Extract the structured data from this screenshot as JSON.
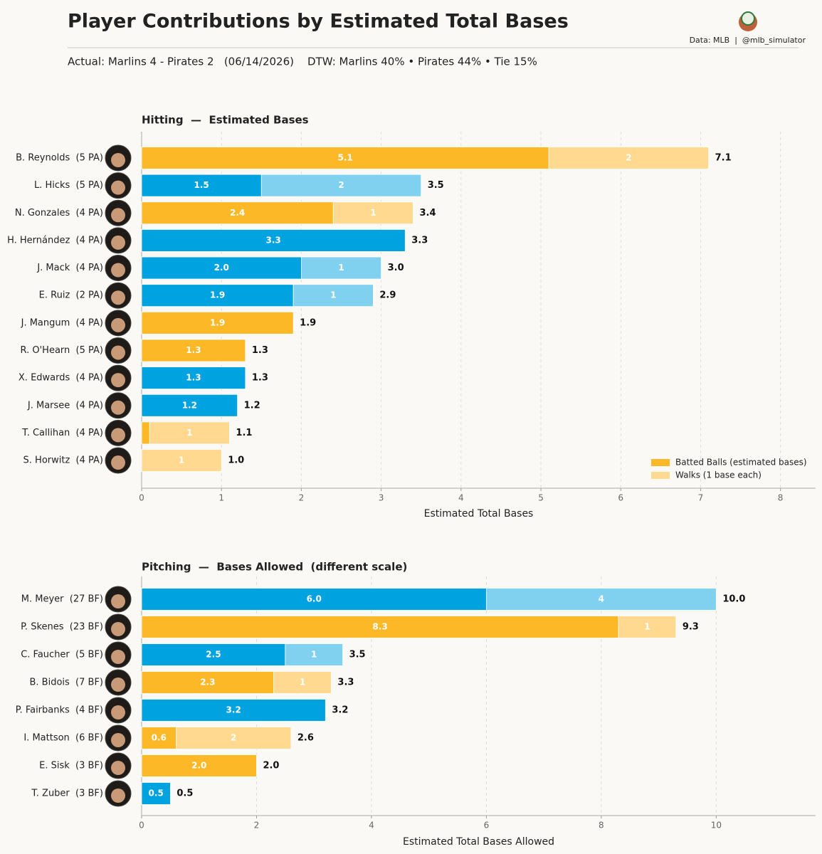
{
  "header": {
    "title": "Player Contributions by Estimated Total Bases",
    "source": "Data: MLB  |  @mlb_simulator",
    "subtitle": "Actual: Marlins 4 - Pirates 2   (06/14/2026)    DTW: Marlins 40% • Pirates 44% • Tie 15%"
  },
  "chart_data": [
    {
      "type": "stacked-bar-horizontal",
      "title": "Hitting  —  Estimated Bases",
      "x_label": "Estimated Total Bases",
      "categories": [
        "B. Reynolds  (5 PA)",
        "L. Hicks  (5 PA)",
        "N. Gonzales  (4 PA)",
        "H. Hernández  (4 PA)",
        "J. Mack  (4 PA)",
        "E. Ruiz  (2 PA)",
        "J. Mangum  (4 PA)",
        "R. O'Hearn  (5 PA)",
        "X. Edwards  (4 PA)",
        "J. Marsee  (4 PA)",
        "T. Callihan  (4 PA)",
        "S. Horwitz  (4 PA)"
      ],
      "series": [
        {
          "name": "Batted Balls (estimated bases)",
          "color": "#fdb827",
          "colors": [
            "#fdb827",
            "#00a3e0",
            "#fdb827",
            "#00a3e0",
            "#00a3e0",
            "#00a3e0",
            "#fdb827",
            "#fdb827",
            "#00a3e0",
            "#00a3e0",
            "#fdb827",
            "#fdb827"
          ],
          "values": [
            5.1,
            1.5,
            2.4,
            3.3,
            2.0,
            1.9,
            1.9,
            1.3,
            1.3,
            1.2,
            0.1,
            null
          ],
          "value_labels": [
            "5.1",
            "1.5",
            "2.4",
            "3.3",
            "2.0",
            "1.9",
            "1.9",
            "1.3",
            "1.3",
            "1.2",
            null,
            null
          ]
        },
        {
          "name": "Walks (1 base each)",
          "color": "#ffd98f",
          "colors": [
            "#ffd98f",
            "#80d0ef",
            "#ffd98f",
            "#80d0ef",
            "#80d0ef",
            "#80d0ef",
            "#ffd98f",
            "#ffd98f",
            "#80d0ef",
            "#80d0ef",
            "#ffd98f",
            "#ffd98f"
          ],
          "values": [
            2,
            2,
            1,
            null,
            1,
            1,
            null,
            null,
            null,
            null,
            1,
            1
          ]
        }
      ],
      "totals": [
        7.1,
        3.5,
        3.4,
        3.3,
        3.0,
        2.9,
        1.9,
        1.3,
        1.3,
        1.2,
        1.1,
        1.0
      ],
      "total_labels": [
        "7.1",
        "3.5",
        "3.4",
        "3.3",
        "3.0",
        "2.9",
        "1.9",
        "1.3",
        "1.3",
        "1.2",
        "1.1",
        "1.0"
      ],
      "xlim": [
        0,
        8.44
      ],
      "xticks": [
        0,
        1,
        2,
        3,
        4,
        5,
        6,
        7,
        8
      ],
      "grid": true,
      "legend": "lower right"
    },
    {
      "type": "stacked-bar-horizontal",
      "title": "Pitching  —  Bases Allowed  (different scale)",
      "x_label": "Estimated Total Bases Allowed",
      "categories": [
        "M. Meyer  (27 BF)",
        "P. Skenes  (23 BF)",
        "C. Faucher  (5 BF)",
        "B. Bidois  (7 BF)",
        "P. Fairbanks  (4 BF)",
        "I. Mattson  (6 BF)",
        "E. Sisk  (3 BF)",
        "T. Zuber  (3 BF)"
      ],
      "series": [
        {
          "colors": [
            "#00a3e0",
            "#fdb827",
            "#00a3e0",
            "#fdb827",
            "#00a3e0",
            "#fdb827",
            "#fdb827",
            "#00a3e0"
          ],
          "values": [
            6.0,
            8.3,
            2.5,
            2.3,
            3.2,
            0.6,
            2.0,
            0.5
          ],
          "value_labels": [
            "6.0",
            "8.3",
            "2.5",
            "2.3",
            "3.2",
            "0.6",
            "2.0",
            "0.5"
          ]
        },
        {
          "colors": [
            "#80d0ef",
            "#ffd98f",
            "#80d0ef",
            "#ffd98f",
            "#80d0ef",
            "#ffd98f",
            "#ffd98f",
            "#80d0ef"
          ],
          "values": [
            4,
            1,
            1,
            1,
            null,
            2,
            null,
            null
          ]
        }
      ],
      "totals": [
        10.0,
        9.3,
        3.5,
        3.3,
        3.2,
        2.6,
        2.0,
        0.5
      ],
      "total_labels": [
        "10.0",
        "9.3",
        "3.5",
        "3.3",
        "3.2",
        "2.6",
        "2.0",
        "0.5"
      ],
      "xlim": [
        0,
        11.73
      ],
      "xticks": [
        0,
        2,
        4,
        6,
        8,
        10
      ],
      "grid": true
    }
  ]
}
